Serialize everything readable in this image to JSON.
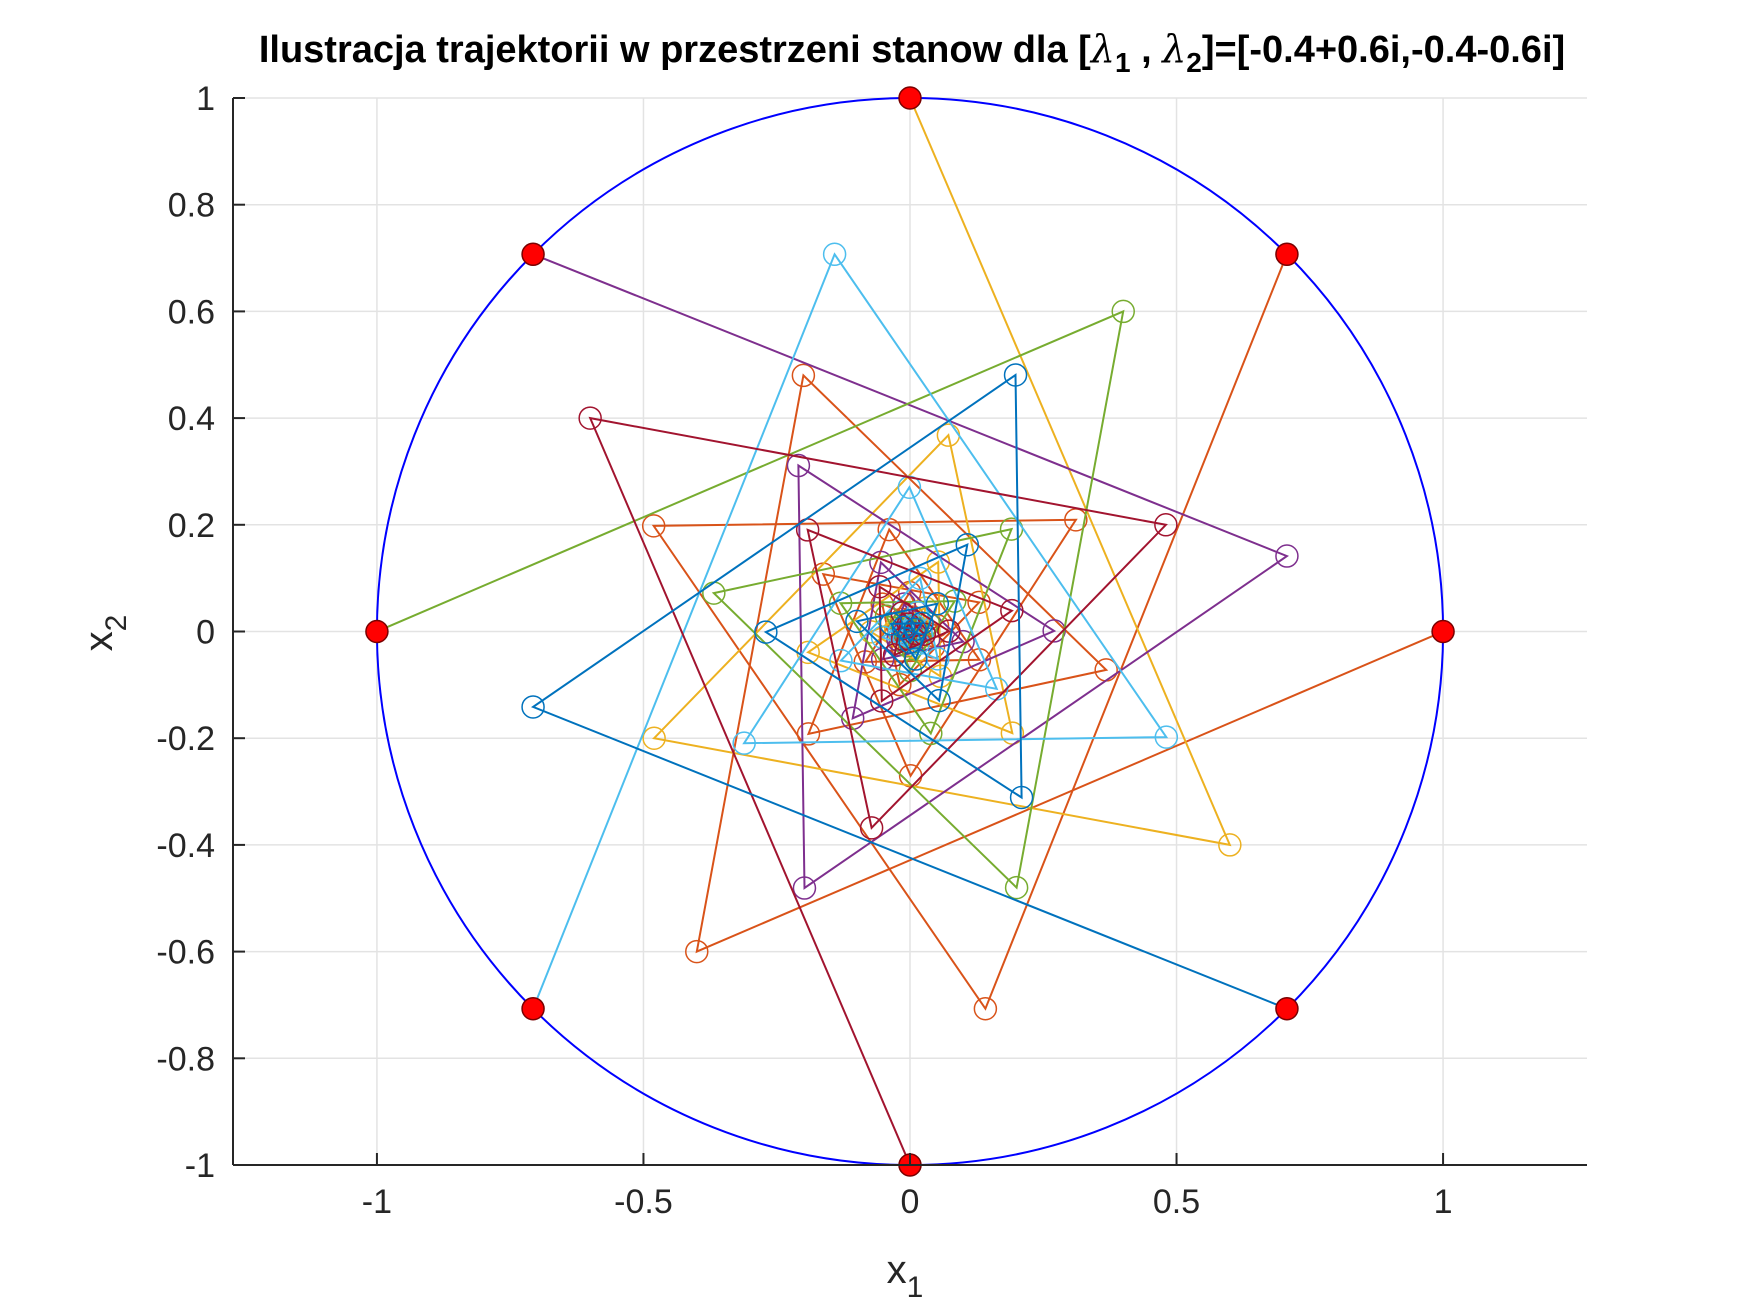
{
  "chart_data": {
    "type": "line",
    "title": {
      "prefix": "Ilustracja trajektorii w przestrzeni stanow dla [",
      "sym1": "λ",
      "sub1": "1",
      "sep": " , ",
      "sym2": "λ",
      "sub2": "2",
      "suffix": "]=[-0.4+0.6i,-0.4-0.6i]"
    },
    "xlabel": {
      "base": "x",
      "sub": "1"
    },
    "ylabel": {
      "base": "x",
      "sub": "2"
    },
    "xlim": [
      -1.27,
      1.27
    ],
    "ylim": [
      -1,
      1
    ],
    "xticks": [
      -1,
      -0.5,
      0,
      0.5,
      1
    ],
    "xtick_labels": [
      "-1",
      "-0.5",
      "0",
      "0.5",
      "1"
    ],
    "yticks": [
      1,
      0.8,
      0.6,
      0.4,
      0.2,
      0,
      -0.2,
      -0.4,
      -0.6,
      -0.8,
      -1
    ],
    "ytick_labels": [
      "1",
      "0.8",
      "0.6",
      "0.4",
      "0.2",
      "0",
      "-0.2",
      "-0.4",
      "-0.6",
      "-0.8",
      "-1"
    ],
    "grid": true,
    "eigenvalues": {
      "re": -0.4,
      "im": 0.6
    },
    "unit_circle": {
      "radius": 1,
      "color": "#0000ff"
    },
    "initial_points": [
      [
        1,
        0
      ],
      [
        0.7071,
        0.7071
      ],
      [
        0,
        1
      ],
      [
        -0.7071,
        0.7071
      ],
      [
        -1,
        0
      ],
      [
        -0.7071,
        -0.7071
      ],
      [
        0,
        -1
      ],
      [
        0.7071,
        -0.7071
      ]
    ],
    "initial_marker_color": "#ff0000",
    "series_colors": [
      "#d95319",
      "#d95319",
      "#edb120",
      "#7e2f8e",
      "#77ac30",
      "#4dbeee",
      "#a2142f",
      "#0072bd"
    ],
    "steps": 14
  }
}
